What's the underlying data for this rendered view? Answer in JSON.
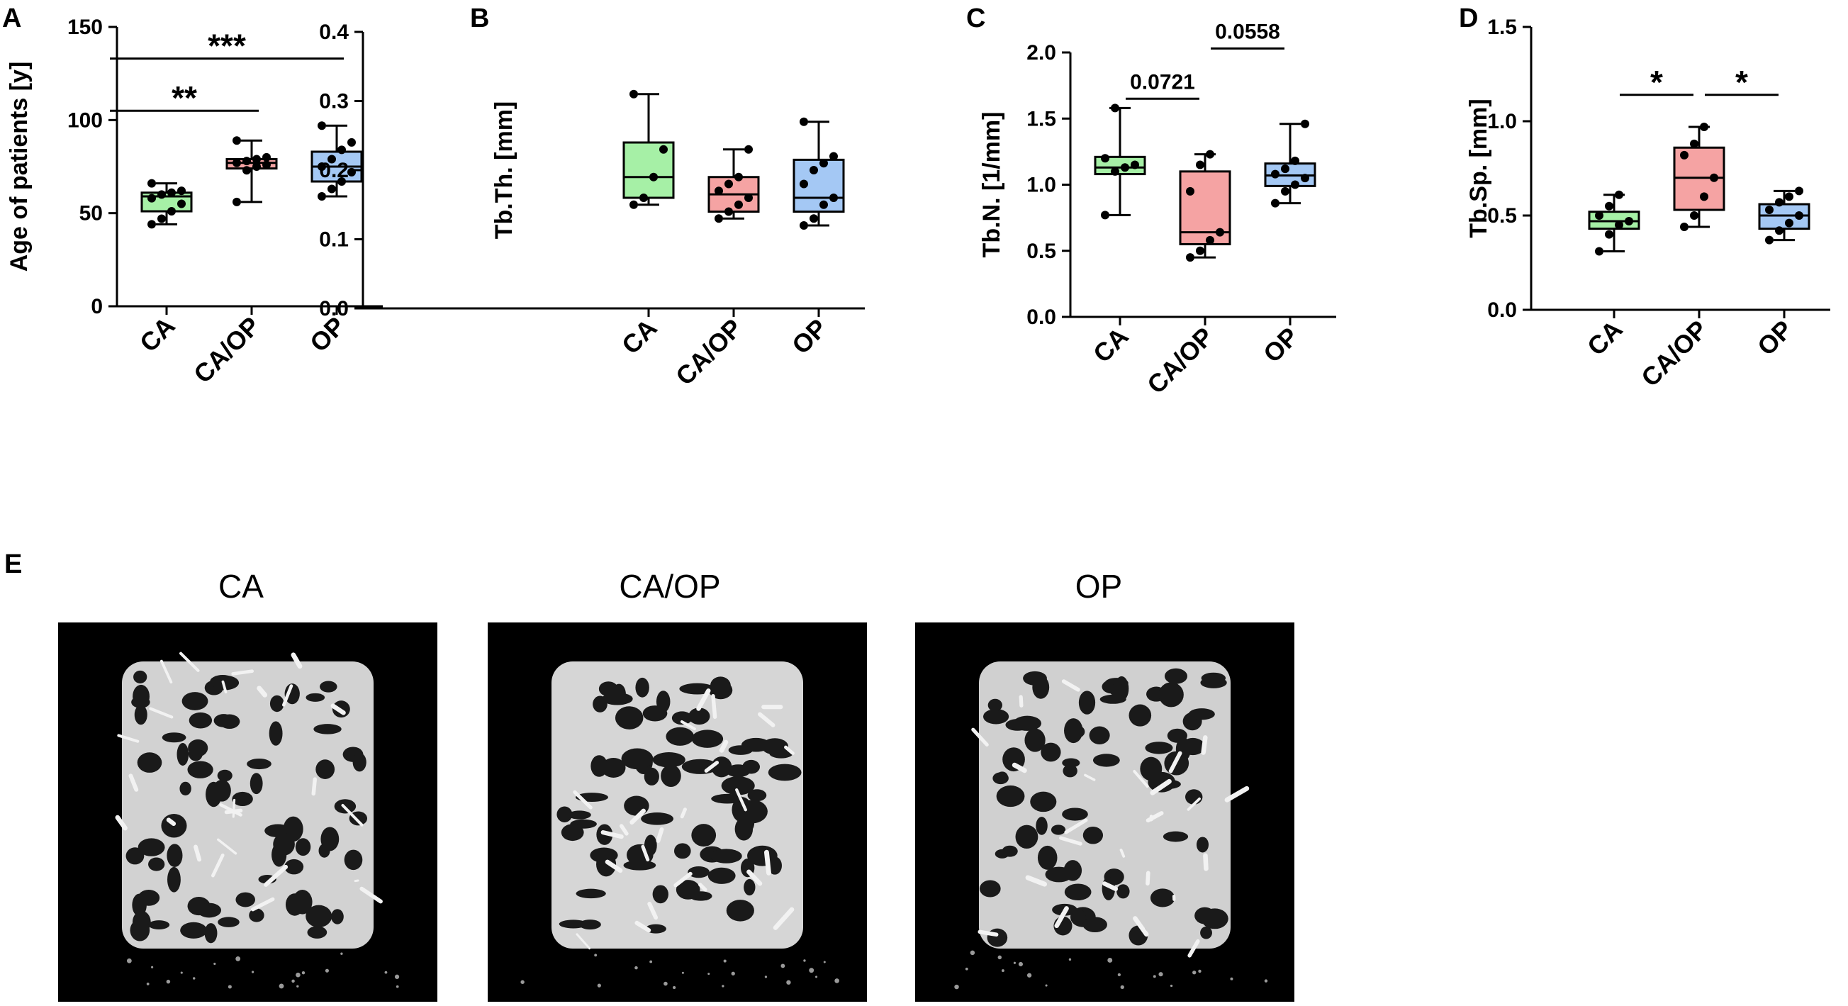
{
  "colors": {
    "CA": "#a6f0a6",
    "CA/OP": "#f5a3a3",
    "OP": "#a4c8f4",
    "axis": "#000000"
  },
  "chart_data": [
    {
      "type": "box",
      "panel": "A",
      "ylabel": "Age of patients [y]",
      "ylim": [
        0,
        150
      ],
      "yticks": [
        0,
        50,
        100,
        150
      ],
      "categories": [
        "CA",
        "CA/OP",
        "OP"
      ],
      "boxes": [
        {
          "min": 44,
          "q1": 51,
          "median": 59,
          "q3": 61,
          "max": 66,
          "points": [
            44,
            47,
            51,
            55,
            58,
            60,
            61,
            62,
            66
          ]
        },
        {
          "min": 56,
          "q1": 74,
          "median": 77,
          "q3": 79,
          "max": 89,
          "points": [
            56,
            73,
            75,
            76,
            77,
            78,
            79,
            80,
            89
          ]
        },
        {
          "min": 59,
          "q1": 67,
          "median": 75,
          "q3": 83,
          "max": 97,
          "points": [
            59,
            63,
            67,
            72,
            75,
            79,
            84,
            88,
            97
          ]
        }
      ],
      "comparisons": [
        {
          "from": "CA",
          "to": "CA/OP",
          "label": "**",
          "y": 105
        },
        {
          "from": "CA",
          "to": "OP",
          "label": "***",
          "y": 133
        }
      ]
    },
    {
      "type": "box",
      "panel": "B",
      "ylabel": "Tb.Th. [mm]",
      "ylim": [
        0,
        0.4
      ],
      "yticks": [
        "0.0",
        "0.1",
        "0.2",
        "0.3",
        "0.4"
      ],
      "categories": [
        "CA",
        "CA/OP",
        "OP"
      ],
      "boxes": [
        {
          "min": 0.15,
          "q1": 0.16,
          "median": 0.19,
          "q3": 0.24,
          "max": 0.31,
          "points": [
            0.15,
            0.16,
            0.19,
            0.23,
            0.31
          ]
        },
        {
          "min": 0.13,
          "q1": 0.14,
          "median": 0.165,
          "q3": 0.19,
          "max": 0.23,
          "points": [
            0.13,
            0.14,
            0.15,
            0.16,
            0.17,
            0.18,
            0.19,
            0.23
          ]
        },
        {
          "min": 0.12,
          "q1": 0.14,
          "median": 0.16,
          "q3": 0.215,
          "max": 0.27,
          "points": [
            0.12,
            0.13,
            0.15,
            0.16,
            0.18,
            0.2,
            0.21,
            0.22,
            0.27
          ]
        }
      ],
      "comparisons": []
    },
    {
      "type": "box",
      "panel": "C",
      "ylabel": "Tb.N. [1/mm]",
      "ylim": [
        0,
        2.0
      ],
      "yticks": [
        "0.0",
        "0.5",
        "1.0",
        "1.5",
        "2.0"
      ],
      "categories": [
        "CA",
        "CA/OP",
        "OP"
      ],
      "boxes": [
        {
          "min": 0.77,
          "q1": 1.08,
          "median": 1.13,
          "q3": 1.21,
          "max": 1.58,
          "points": [
            0.77,
            1.1,
            1.13,
            1.15,
            1.2,
            1.58
          ]
        },
        {
          "min": 0.45,
          "q1": 0.55,
          "median": 0.64,
          "q3": 1.1,
          "max": 1.23,
          "points": [
            0.45,
            0.5,
            0.58,
            0.64,
            0.95,
            1.15,
            1.23
          ]
        },
        {
          "min": 0.86,
          "q1": 0.99,
          "median": 1.07,
          "q3": 1.16,
          "max": 1.46,
          "points": [
            0.86,
            0.95,
            1.0,
            1.05,
            1.08,
            1.12,
            1.18,
            1.46
          ]
        }
      ],
      "comparisons": [
        {
          "from": "CA",
          "to": "CA/OP",
          "label": "0.0721",
          "y": 1.65
        },
        {
          "from": "CA/OP",
          "to": "OP",
          "label": "0.0558",
          "y": 2.03
        }
      ]
    },
    {
      "type": "box",
      "panel": "D",
      "ylabel": "Tb.Sp. [mm]",
      "ylim": [
        0,
        1.5
      ],
      "yticks": [
        "0.0",
        "0.5",
        "1.0",
        "1.5"
      ],
      "categories": [
        "CA",
        "CA/OP",
        "OP"
      ],
      "boxes": [
        {
          "min": 0.31,
          "q1": 0.43,
          "median": 0.47,
          "q3": 0.52,
          "max": 0.61,
          "points": [
            0.31,
            0.4,
            0.45,
            0.47,
            0.5,
            0.55,
            0.61
          ]
        },
        {
          "min": 0.44,
          "q1": 0.53,
          "median": 0.7,
          "q3": 0.86,
          "max": 0.97,
          "points": [
            0.44,
            0.5,
            0.6,
            0.7,
            0.82,
            0.88,
            0.97
          ]
        },
        {
          "min": 0.37,
          "q1": 0.43,
          "median": 0.5,
          "q3": 0.56,
          "max": 0.63,
          "points": [
            0.37,
            0.42,
            0.46,
            0.5,
            0.53,
            0.57,
            0.6,
            0.63
          ]
        }
      ],
      "comparisons": [
        {
          "from": "CA",
          "to": "CA/OP",
          "label": "*",
          "y": 1.14
        },
        {
          "from": "CA/OP",
          "to": "OP",
          "label": "*",
          "y": 1.14
        }
      ]
    }
  ],
  "panel_e": {
    "letter": "E",
    "images": [
      {
        "title": "CA",
        "shade": "#d2d2d2"
      },
      {
        "title": "CA/OP",
        "shade": "#d6d6d6"
      },
      {
        "title": "OP",
        "shade": "#d0d0d0"
      }
    ]
  }
}
